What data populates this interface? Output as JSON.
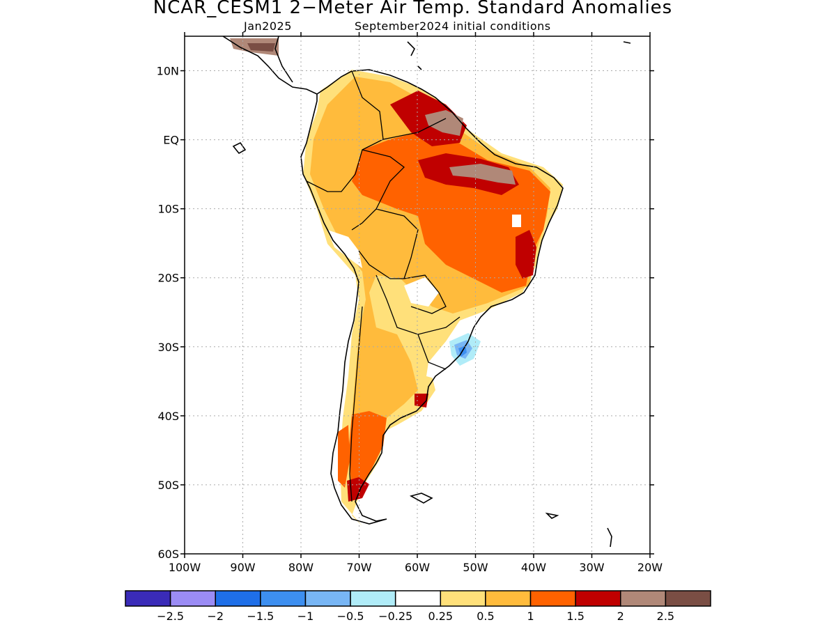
{
  "title": "NCAR_CESM1 2−Meter Air Temp. Standard Anomalies",
  "subtitle_left": "Jan2025",
  "subtitle_right": "September2024 initial conditions",
  "map": {
    "lon_range": [
      -100,
      -20
    ],
    "lat_range": [
      -60,
      15
    ],
    "lat_ticks": [
      {
        "value": 10,
        "label": "10N"
      },
      {
        "value": 0,
        "label": "EQ"
      },
      {
        "value": -10,
        "label": "10S"
      },
      {
        "value": -20,
        "label": "20S"
      },
      {
        "value": -30,
        "label": "30S"
      },
      {
        "value": -40,
        "label": "40S"
      },
      {
        "value": -50,
        "label": "50S"
      },
      {
        "value": -60,
        "label": "60S"
      }
    ],
    "lon_ticks": [
      {
        "value": -100,
        "label": "100W"
      },
      {
        "value": -90,
        "label": "90W"
      },
      {
        "value": -80,
        "label": "80W"
      },
      {
        "value": -70,
        "label": "70W"
      },
      {
        "value": -60,
        "label": "60W"
      },
      {
        "value": -50,
        "label": "50W"
      },
      {
        "value": -40,
        "label": "40W"
      },
      {
        "value": -30,
        "label": "30W"
      },
      {
        "value": -20,
        "label": "20W"
      }
    ],
    "grid": "dotted"
  },
  "colorbar": {
    "colors": [
      "#3a2bb8",
      "#9b8cf5",
      "#1f6fe8",
      "#3d8ff0",
      "#78b6f5",
      "#b0ecf8",
      "#ffffff",
      "#ffe07a",
      "#ffbb3c",
      "#ff6200",
      "#c00000",
      "#b08878",
      "#7a4e44"
    ],
    "labels": [
      "−2.5",
      "−2",
      "−1.5",
      "−1",
      "−0.5",
      "−0.25",
      "0.25",
      "0.5",
      "1",
      "1.5",
      "2",
      "2.5"
    ]
  }
}
